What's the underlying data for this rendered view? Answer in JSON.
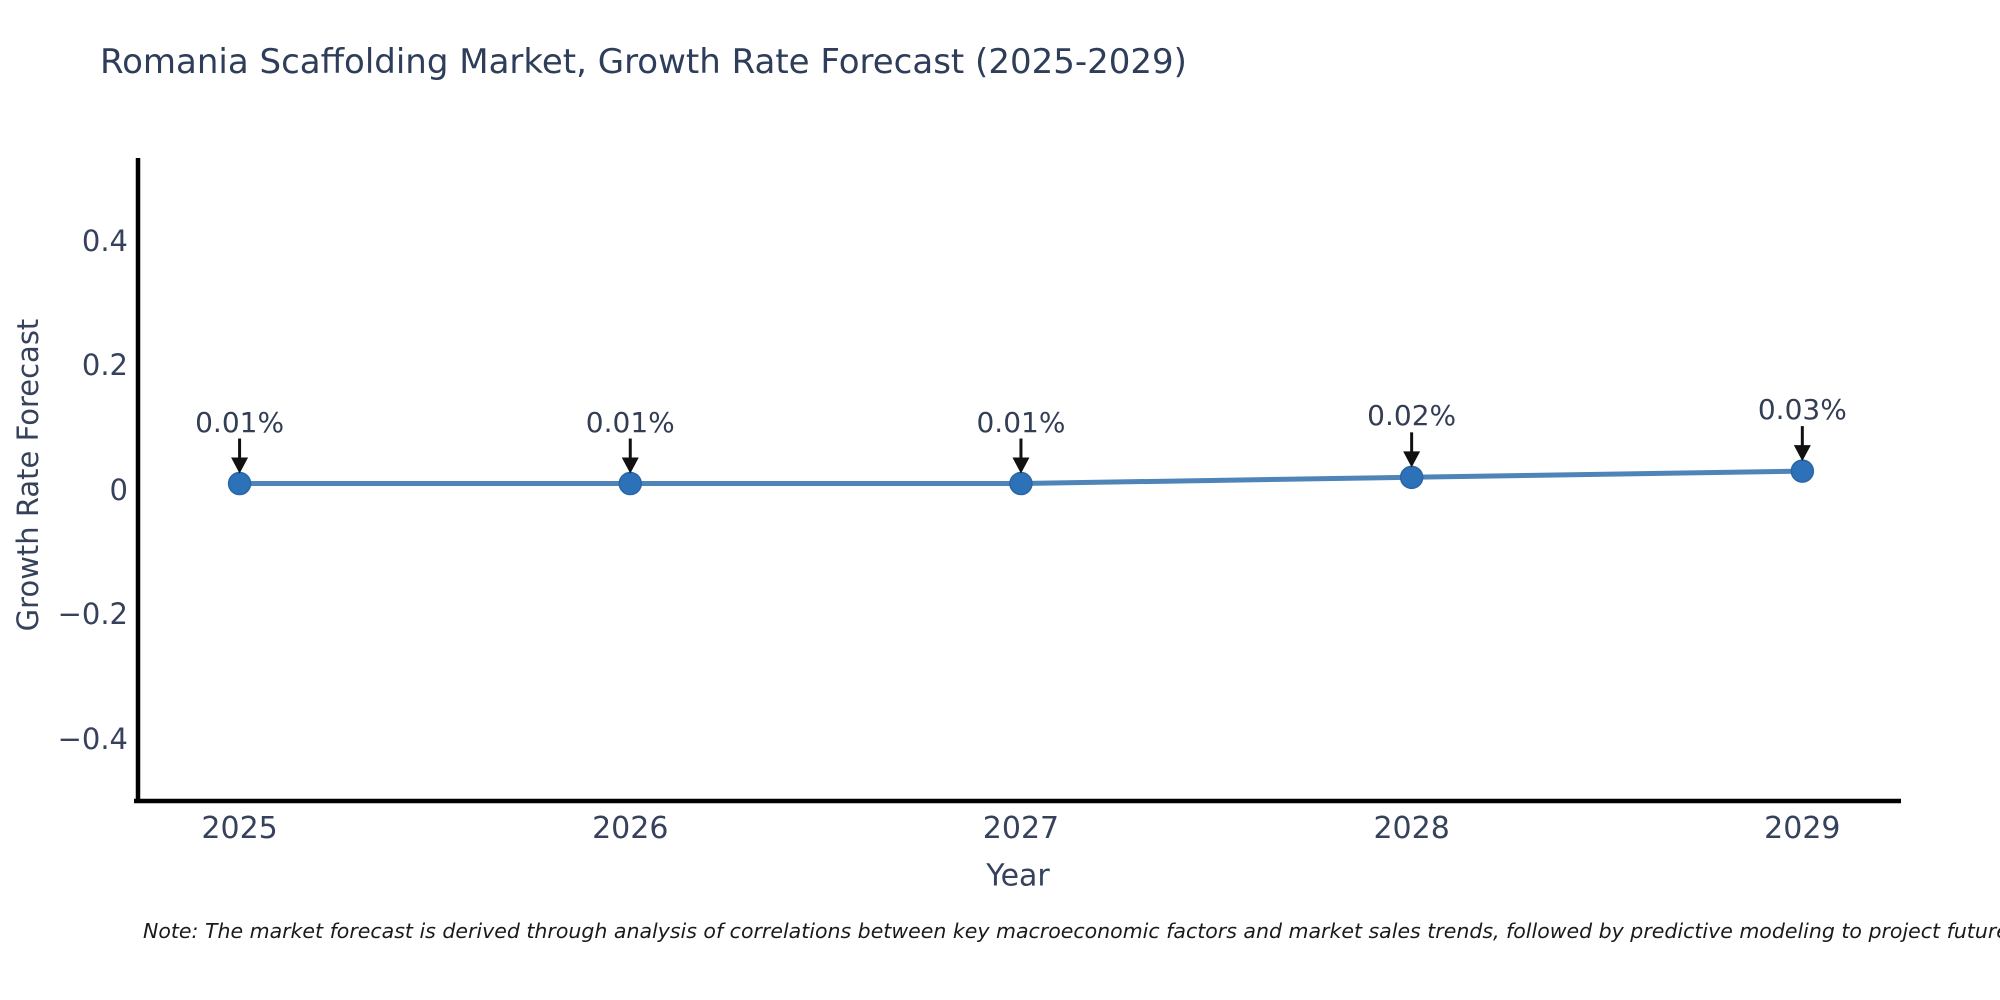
{
  "chart_data": {
    "type": "line",
    "title": "Romania Scaffolding Market, Growth Rate Forecast (2025-2029)",
    "xlabel": "Year",
    "ylabel": "Growth Rate Forecast",
    "x": [
      2025,
      2026,
      2027,
      2028,
      2029
    ],
    "values": [
      0.01,
      0.01,
      0.01,
      0.02,
      0.03
    ],
    "point_labels": [
      "0.01%",
      "0.01%",
      "0.01%",
      "0.02%",
      "0.03%"
    ],
    "x_tick_labels": [
      "2025",
      "2026",
      "2027",
      "2028",
      "2029"
    ],
    "y_ticks": [
      0.4,
      0.2,
      0,
      -0.2,
      -0.4
    ],
    "y_tick_labels": [
      "0.4",
      "0.2",
      "0",
      "−0.2",
      "−0.4"
    ],
    "xlim": [
      2024.74,
      2029.25
    ],
    "ylim": [
      -0.5,
      0.533
    ],
    "grid": false,
    "legend_position": "none",
    "line_color": "#4e84b8",
    "marker_color": "#2d71b9",
    "marker_edge_color": "#2a66a5",
    "arrow_color": "#111111",
    "spine_color": "#000000",
    "note": "Note: The market forecast is derived through analysis of correlations between key macroeconomic factors and market sales trends, followed by predictive modeling to project future sa"
  }
}
